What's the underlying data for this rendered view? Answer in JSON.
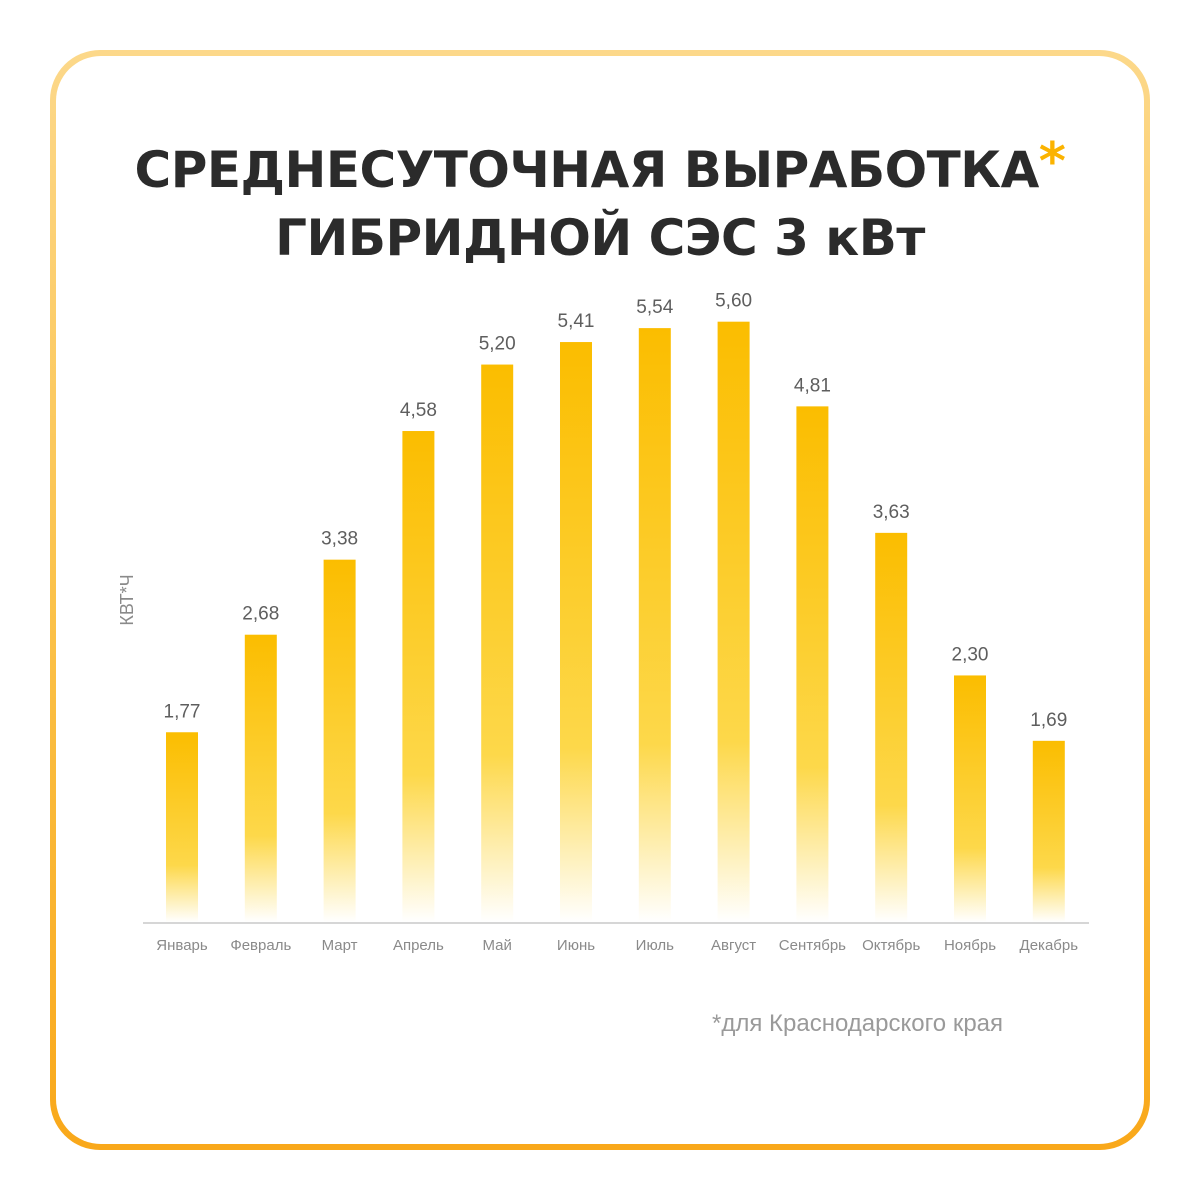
{
  "title": {
    "line1": "СРЕДНЕСУТОЧНАЯ ВЫРАБОТКА",
    "asterisk": "*",
    "line2": "ГИБРИДНОЙ СЭС 3 кВт"
  },
  "footnote": "*для Краснодарского края",
  "colors": {
    "bar_top": "#fbbd00",
    "bar_mid": "#fdd84a",
    "bar_bottom": "#ffffff",
    "frame_accent": "#fbb300",
    "text_dark": "#2b2b2b",
    "text_muted": "#8a8a8a"
  },
  "chart_data": {
    "type": "bar",
    "title": "СРЕДНЕСУТОЧНАЯ ВЫРАБОТКА* ГИБРИДНОЙ СЭС 3 кВт",
    "xlabel": "",
    "ylabel": "КВТ*Ч",
    "categories": [
      "Январь",
      "Февраль",
      "Март",
      "Апрель",
      "Май",
      "Июнь",
      "Июль",
      "Август",
      "Сентябрь",
      "Октябрь",
      "Ноябрь",
      "Декабрь"
    ],
    "values": [
      1.77,
      2.68,
      3.38,
      4.58,
      5.2,
      5.41,
      5.54,
      5.6,
      4.81,
      3.63,
      2.3,
      1.69
    ],
    "value_labels": [
      "1,77",
      "2,68",
      "3,38",
      "4,58",
      "5,20",
      "5,41",
      "5,54",
      "5,60",
      "4,81",
      "3,63",
      "2,30",
      "1,69"
    ],
    "ylim": [
      0,
      6
    ],
    "grid": false,
    "legend": "none"
  }
}
